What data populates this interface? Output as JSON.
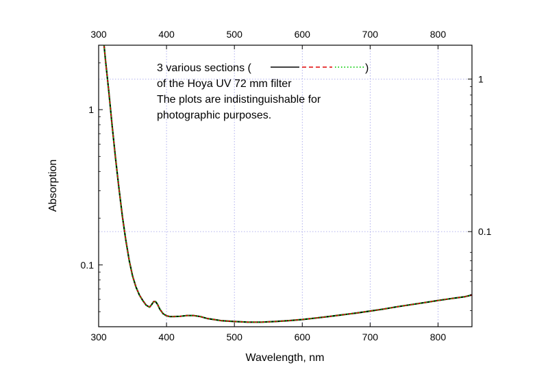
{
  "chart_data": {
    "type": "line",
    "xlabel": "Wavelength, nm",
    "ylabel": "Absorption",
    "yscale": "log",
    "xlim": [
      300,
      850
    ],
    "ylim": [
      0.04,
      2.6
    ],
    "x_ticks": [
      300,
      400,
      500,
      600,
      700,
      800
    ],
    "x_tick_labels": [
      "300",
      "400",
      "500",
      "600",
      "700",
      "800"
    ],
    "y_ticks": [
      0.1,
      1
    ],
    "y_tick_labels": [
      "0.1",
      "1"
    ],
    "right_y_ticks": [
      0.12,
      1.0
    ],
    "right_y_tick_labels": [
      "0.1",
      "1"
    ],
    "grid": true,
    "annotation": {
      "line1_prefix": "3 various sections (",
      "line1_suffix": ")",
      "line2": "of the Hoya UV 72 mm filter",
      "line3": "The plots are indistinguishable for",
      "line4": "photographic purposes."
    },
    "series": [
      {
        "style": "solid",
        "color": "#000000",
        "x": [
          308,
          310,
          315,
          320,
          325,
          330,
          335,
          340,
          345,
          350,
          355,
          360,
          365,
          370,
          375,
          378,
          381,
          384,
          387,
          390,
          395,
          400,
          405,
          410,
          420,
          430,
          440,
          450,
          460,
          480,
          500,
          520,
          540,
          560,
          580,
          600,
          620,
          640,
          660,
          680,
          700,
          720,
          740,
          760,
          780,
          800,
          820,
          840,
          850
        ],
        "y": [
          2.6,
          2.1,
          1.3,
          0.78,
          0.48,
          0.31,
          0.205,
          0.145,
          0.107,
          0.085,
          0.072,
          0.064,
          0.059,
          0.055,
          0.0535,
          0.0555,
          0.058,
          0.058,
          0.0555,
          0.052,
          0.0485,
          0.047,
          0.0465,
          0.0465,
          0.0467,
          0.0472,
          0.0472,
          0.0465,
          0.0452,
          0.0438,
          0.0432,
          0.0428,
          0.0428,
          0.0432,
          0.0438,
          0.0445,
          0.0455,
          0.0466,
          0.0478,
          0.049,
          0.0505,
          0.052,
          0.0538,
          0.0555,
          0.0572,
          0.059,
          0.0608,
          0.0625,
          0.064
        ]
      },
      {
        "style": "dashed",
        "color": "#e00000",
        "x": [
          308,
          310,
          315,
          320,
          325,
          330,
          335,
          340,
          345,
          350,
          355,
          360,
          365,
          370,
          375,
          378,
          381,
          384,
          387,
          390,
          395,
          400,
          405,
          410,
          420,
          430,
          440,
          450,
          460,
          480,
          500,
          520,
          540,
          560,
          580,
          600,
          620,
          640,
          660,
          680,
          700,
          720,
          740,
          760,
          780,
          800,
          820,
          840,
          850
        ],
        "y": [
          2.6,
          2.1,
          1.3,
          0.78,
          0.48,
          0.31,
          0.205,
          0.145,
          0.107,
          0.085,
          0.072,
          0.064,
          0.059,
          0.055,
          0.0535,
          0.0555,
          0.058,
          0.058,
          0.0555,
          0.052,
          0.0485,
          0.047,
          0.0465,
          0.0465,
          0.0467,
          0.0472,
          0.0472,
          0.0465,
          0.0452,
          0.0438,
          0.0432,
          0.0428,
          0.0428,
          0.0432,
          0.0438,
          0.0445,
          0.0455,
          0.0466,
          0.0478,
          0.049,
          0.0505,
          0.052,
          0.0538,
          0.0555,
          0.0572,
          0.059,
          0.0608,
          0.0625,
          0.064
        ]
      },
      {
        "style": "dotted",
        "color": "#00cc00",
        "x": [
          308,
          310,
          315,
          320,
          325,
          330,
          335,
          340,
          345,
          350,
          355,
          360,
          365,
          370,
          375,
          378,
          381,
          384,
          387,
          390,
          395,
          400,
          405,
          410,
          420,
          430,
          440,
          450,
          460,
          480,
          500,
          520,
          540,
          560,
          580,
          600,
          620,
          640,
          660,
          680,
          700,
          720,
          740,
          760,
          780,
          800,
          820,
          840,
          850
        ],
        "y": [
          2.6,
          2.1,
          1.3,
          0.78,
          0.48,
          0.31,
          0.205,
          0.145,
          0.107,
          0.085,
          0.072,
          0.064,
          0.059,
          0.055,
          0.0535,
          0.0555,
          0.058,
          0.058,
          0.0555,
          0.052,
          0.0485,
          0.047,
          0.0465,
          0.0465,
          0.0467,
          0.0472,
          0.0472,
          0.0465,
          0.0452,
          0.0438,
          0.0432,
          0.0428,
          0.0428,
          0.0432,
          0.0438,
          0.0445,
          0.0455,
          0.0466,
          0.0478,
          0.049,
          0.0505,
          0.052,
          0.0538,
          0.0555,
          0.0572,
          0.059,
          0.0608,
          0.0625,
          0.064
        ]
      }
    ]
  }
}
